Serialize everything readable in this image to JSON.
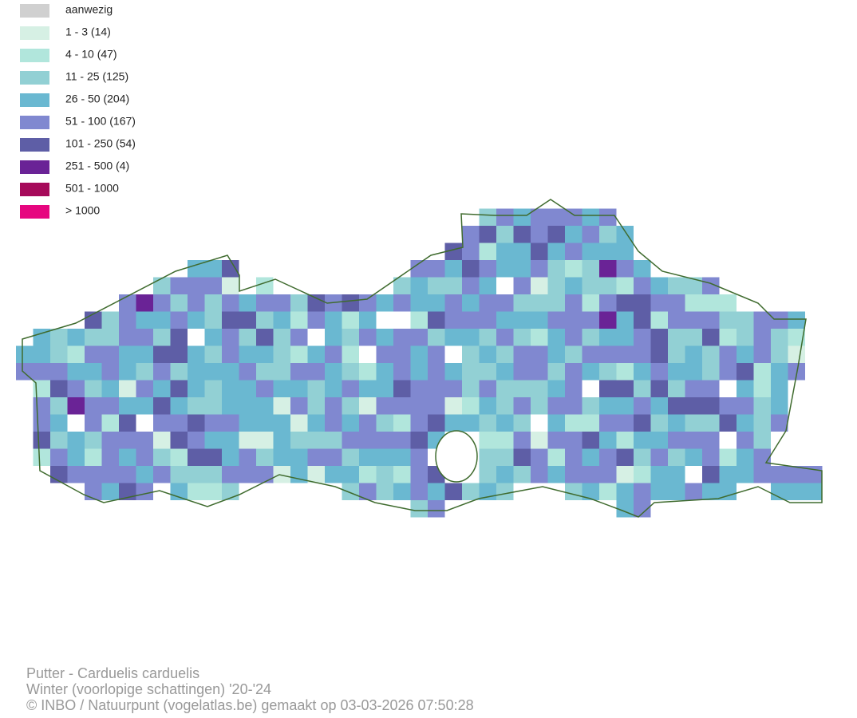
{
  "legend": {
    "items": [
      {
        "label": "aanwezig",
        "color": "#d0d0d0"
      },
      {
        "label": "1 - 3 (14)",
        "color": "#d6f0e4"
      },
      {
        "label": "4 - 10 (47)",
        "color": "#b1e6dc"
      },
      {
        "label": "11 - 25 (125)",
        "color": "#92d0d4"
      },
      {
        "label": "26 - 50 (204)",
        "color": "#6ab8d1"
      },
      {
        "label": "51 - 100 (167)",
        "color": "#8088d0"
      },
      {
        "label": "101 - 250 (54)",
        "color": "#5e5ea6"
      },
      {
        "label": "251 - 500 (4)",
        "color": "#6a2396"
      },
      {
        "label": "501 - 1000",
        "color": "#a60a5a"
      },
      {
        "label": "> 1000",
        "color": "#e6067f"
      }
    ]
  },
  "footer": {
    "lines": [
      "Putter - Carduelis carduelis",
      "Winter (voorlopige schattingen) '20-'24",
      "© INBO / Natuurpunt (vogelatlas.be) gemaakt op 03-03-2026 07:50:28"
    ]
  }
}
